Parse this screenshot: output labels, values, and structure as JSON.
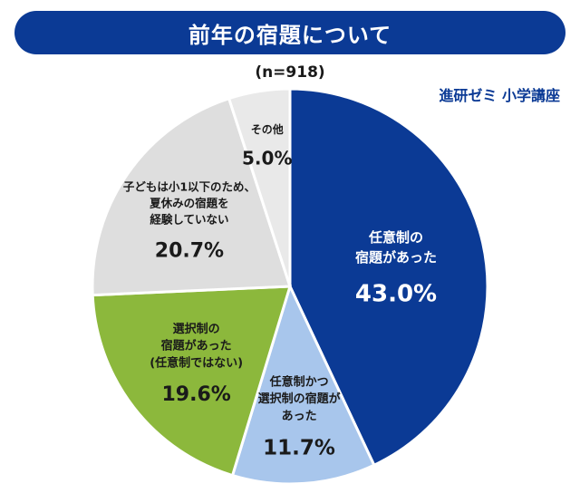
{
  "title": "前年の宿題について",
  "sample_size": "(n=918)",
  "brand": "進研ゼミ 小学講座",
  "chart_data": {
    "type": "pie",
    "start_angle_deg": 0,
    "direction": "clockwise",
    "slices": [
      {
        "label_lines": [
          "任意制の",
          "宿題があった"
        ],
        "value": 43.0,
        "value_text": "43.0%",
        "color": "#0b3a95",
        "text_color": "#ffffff"
      },
      {
        "label_lines": [
          "任意制かつ",
          "選択制の宿題が",
          "あった"
        ],
        "value": 11.7,
        "value_text": "11.7%",
        "color": "#a8c6ec",
        "text_color": "#1a1a1a"
      },
      {
        "label_lines": [
          "選択制の",
          "宿題があった",
          "(任意制ではない)"
        ],
        "value": 19.6,
        "value_text": "19.6%",
        "color": "#8cb83c",
        "text_color": "#1a1a1a"
      },
      {
        "label_lines": [
          "子どもは小1以下のため、",
          "夏休みの宿題を",
          "経験していない"
        ],
        "value": 20.7,
        "value_text": "20.7%",
        "color": "#dedede",
        "text_color": "#1a1a1a"
      },
      {
        "label_lines": [
          "その他"
        ],
        "value": 5.0,
        "value_text": "5.0%",
        "color": "#e9e9e9",
        "text_color": "#1a1a1a"
      }
    ]
  }
}
